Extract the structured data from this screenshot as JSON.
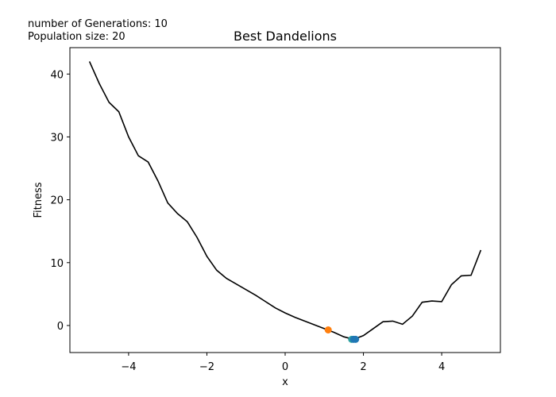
{
  "chart_data": {
    "type": "line",
    "title": "Best Dandelions",
    "xlabel": "x",
    "ylabel": "Fitness",
    "annotations": [
      "number of Generations: 10",
      "Population size: 20"
    ],
    "x": [
      -5,
      -4.75,
      -4.5,
      -4.25,
      -4,
      -3.75,
      -3.5,
      -3.25,
      -3,
      -2.75,
      -2.5,
      -2.25,
      -2,
      -1.75,
      -1.5,
      -1.25,
      -1,
      -0.75,
      -0.5,
      -0.25,
      0,
      0.25,
      0.5,
      0.75,
      1,
      1.25,
      1.5,
      1.75,
      2,
      2.25,
      2.5,
      2.75,
      3,
      3.25,
      3.5,
      3.75,
      4,
      4.25,
      4.5,
      4.75,
      5
    ],
    "values": [
      42,
      38.5,
      35.5,
      34,
      30,
      27,
      26,
      23,
      19.5,
      17.8,
      16.5,
      14,
      11,
      8.8,
      7.5,
      6.6,
      5.7,
      4.8,
      3.8,
      2.8,
      2,
      1.3,
      0.7,
      0.1,
      -0.5,
      -1.1,
      -1.8,
      -2.2,
      -1.6,
      -0.5,
      0.6,
      0.7,
      0.2,
      1.5,
      3.7,
      3.9,
      3.8,
      6.5,
      7.9,
      8,
      12
    ],
    "color": "#000000",
    "scatter": {
      "x": [
        1.7,
        1.75,
        1.8,
        1.1
      ],
      "y": [
        -2.2,
        -2.2,
        -2.2,
        -0.7
      ],
      "colors": [
        "#2ca0a0",
        "#1f77b4",
        "#1f77b4",
        "#ff7f0e"
      ]
    },
    "xlim": [
      -5.5,
      5.5
    ],
    "ylim": [
      -4.3,
      44.2
    ],
    "xticks": [
      {
        "value": -4,
        "label": "−4"
      },
      {
        "value": -2,
        "label": "−2"
      },
      0,
      2,
      4
    ],
    "yticks": [
      0,
      10,
      20,
      30,
      40
    ]
  }
}
